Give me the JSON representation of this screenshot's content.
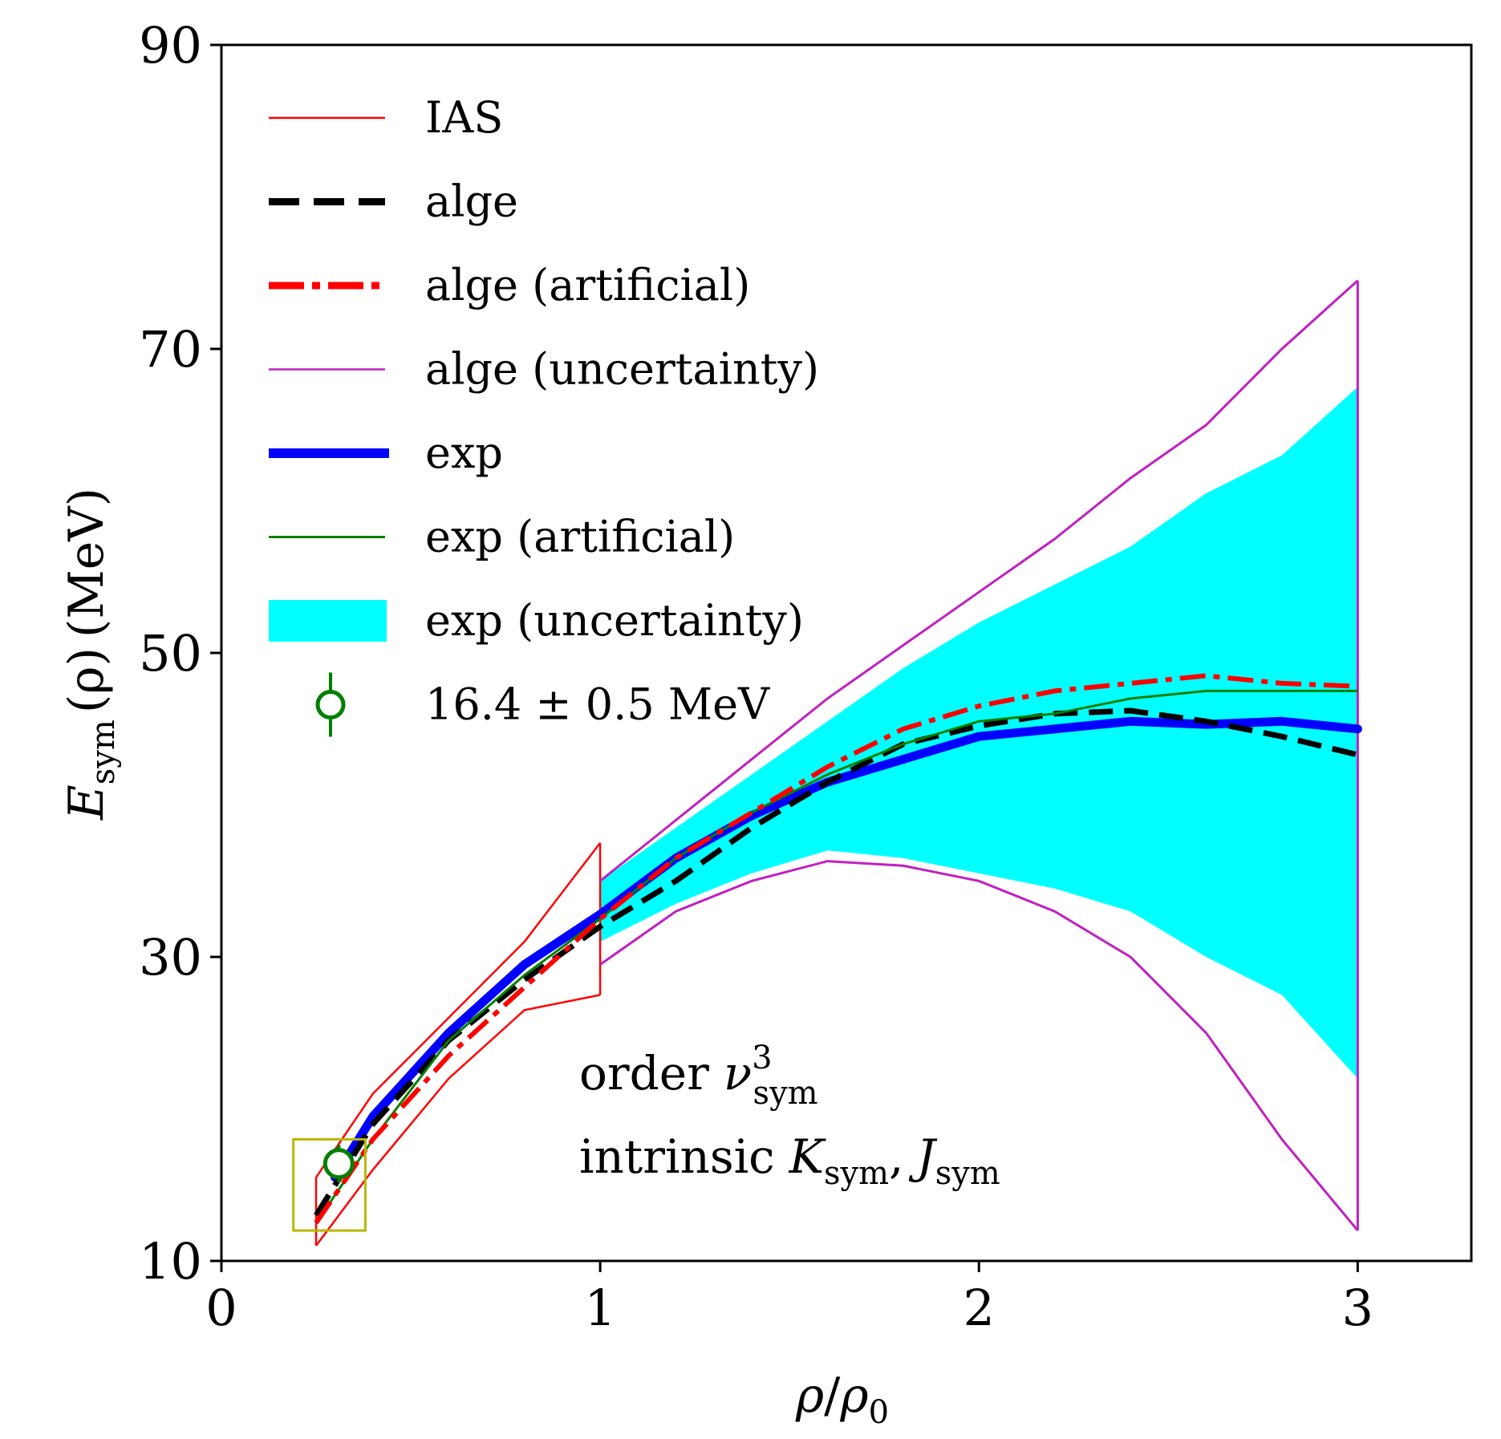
{
  "colors": {
    "ias": "#ff0000",
    "alge": "#000000",
    "alge_artificial": "#ff0000",
    "alge_uncertainty": "#c020c0",
    "exp": "#0000ff",
    "exp_artificial": "#008000",
    "exp_uncertainty": "#00ffff",
    "empirical_point": "#008000",
    "highlight_box": "#b8b800"
  },
  "chart_data": {
    "type": "line",
    "xlabel": {
      "main": "ρ",
      "sep": "/",
      "denom": "ρ",
      "denom_sub": "0"
    },
    "ylabel": {
      "main": "E",
      "sub": "sym",
      "arg": "(ρ)",
      "unit": "(MeV)"
    },
    "xlim": [
      0,
      3.3
    ],
    "ylim": [
      10,
      90
    ],
    "xticks": [
      0,
      1,
      2,
      3
    ],
    "yticks": [
      10,
      30,
      50,
      70,
      90
    ],
    "xtick_labels": [
      "0",
      "1",
      "2",
      "3"
    ],
    "ytick_labels": [
      "10",
      "30",
      "50",
      "70",
      "90"
    ],
    "legend_position": "upper-left",
    "annotation": {
      "line1": {
        "word": "order",
        "sym": "ν",
        "sup": "3",
        "sub": "sym"
      },
      "line2": {
        "word": "intrinsic",
        "sym1": "K",
        "sub1": "sym",
        "comma": ",",
        "sym2": "J",
        "sub2": "sym"
      }
    },
    "series": [
      {
        "name": "IAS",
        "kind": "ias_band",
        "upper": [
          [
            0.25,
            15.5
          ],
          [
            0.4,
            21
          ],
          [
            0.6,
            26
          ],
          [
            0.8,
            31
          ],
          [
            1.0,
            37.5
          ]
        ],
        "lower": [
          [
            0.25,
            11
          ],
          [
            0.4,
            16
          ],
          [
            0.6,
            22
          ],
          [
            0.8,
            26.5
          ],
          [
            1.0,
            27.5
          ]
        ],
        "right_edge": [
          [
            1.0,
            37.5
          ],
          [
            1.0,
            27.5
          ]
        ]
      },
      {
        "name": "alge",
        "style": "dashed",
        "x": [
          0.25,
          0.4,
          0.6,
          0.8,
          1.0,
          1.2,
          1.4,
          1.6,
          1.8,
          2.0,
          2.2,
          2.4,
          2.6,
          2.8,
          3.0
        ],
        "y": [
          13,
          19,
          24.5,
          28.5,
          32,
          35,
          38.5,
          41.5,
          44,
          45.2,
          46,
          46.2,
          45.5,
          44.5,
          43.3
        ]
      },
      {
        "name": "alge (artificial)",
        "style": "dashdot",
        "x": [
          0.25,
          0.4,
          0.6,
          0.8,
          1.0,
          1.2,
          1.4,
          1.6,
          1.8,
          2.0,
          2.2,
          2.4,
          2.6,
          2.8,
          3.0
        ],
        "y": [
          12.5,
          18,
          23.5,
          28,
          32.5,
          36.5,
          39.5,
          42.5,
          45,
          46.5,
          47.5,
          48,
          48.5,
          48,
          47.8
        ]
      },
      {
        "name": "alge (uncertainty)",
        "style": "solid-thin",
        "kind": "bounds",
        "upper_x": [
          1.0,
          1.2,
          1.4,
          1.6,
          1.8,
          2.0,
          2.2,
          2.4,
          2.6,
          2.8,
          3.0
        ],
        "upper_y": [
          35,
          39,
          43,
          47,
          50.5,
          54,
          57.5,
          61.5,
          65,
          70,
          74.5
        ],
        "lower_x": [
          1.0,
          1.2,
          1.4,
          1.6,
          1.8,
          2.0,
          2.2,
          2.4,
          2.6,
          2.8,
          3.0
        ],
        "lower_y": [
          29.5,
          33,
          35,
          36.3,
          36,
          35,
          33,
          30,
          25,
          18,
          12
        ]
      },
      {
        "name": "exp",
        "style": "solid-thick",
        "x": [
          0.3,
          0.4,
          0.6,
          0.8,
          1.0,
          1.2,
          1.4,
          1.6,
          1.8,
          2.0,
          2.2,
          2.4,
          2.6,
          2.8,
          3.0
        ],
        "y": [
          15.5,
          19.5,
          25,
          29.5,
          32.8,
          36.5,
          39.3,
          41.5,
          43,
          44.5,
          45,
          45.5,
          45.3,
          45.5,
          45
        ]
      },
      {
        "name": "exp (artificial)",
        "style": "solid-thin",
        "x": [
          0.25,
          0.4,
          0.6,
          0.8,
          1.0,
          1.2,
          1.4,
          1.6,
          1.8,
          2.0,
          2.2,
          2.4,
          2.6,
          2.8,
          3.0
        ],
        "y": [
          12.5,
          18,
          24.5,
          28.8,
          32.5,
          36.5,
          39.5,
          42,
          44,
          45.5,
          46,
          47,
          47.5,
          47.5,
          47.5
        ]
      },
      {
        "name": "exp (uncertainty)",
        "style": "fill",
        "kind": "band",
        "x": [
          1.0,
          1.2,
          1.4,
          1.6,
          1.8,
          2.0,
          2.2,
          2.4,
          2.6,
          2.8,
          3.0
        ],
        "upper": [
          35,
          38.5,
          42,
          45.5,
          49,
          52,
          54.5,
          57,
          60.5,
          63,
          67.5
        ],
        "lower": [
          31,
          33.5,
          35.5,
          37,
          36.5,
          35.5,
          34.5,
          33,
          30,
          27.5,
          22
        ]
      },
      {
        "name": "16.4 ± 0.5 MeV",
        "kind": "point",
        "x": 0.31,
        "y": 16.4,
        "err": 0.5
      }
    ],
    "highlight_box": {
      "x": [
        0.19,
        0.38
      ],
      "y": [
        12,
        18
      ]
    }
  }
}
